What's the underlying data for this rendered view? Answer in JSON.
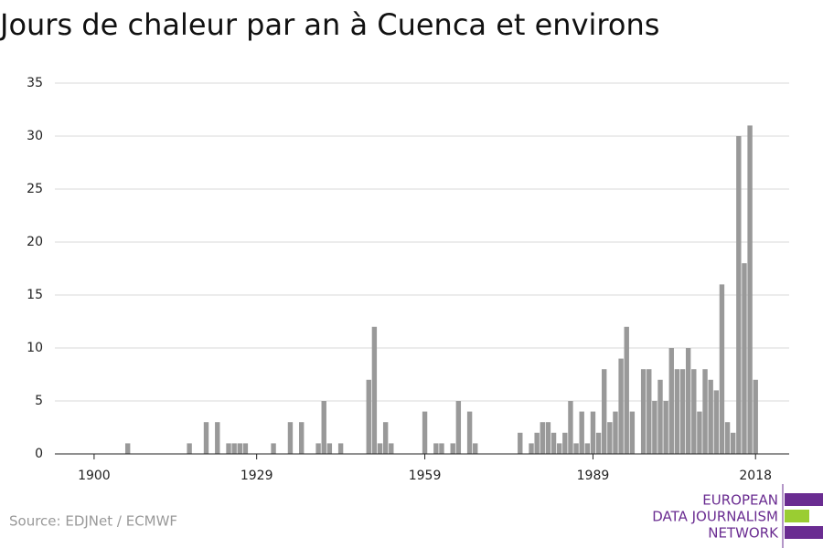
{
  "chart_data": {
    "type": "bar",
    "title": "Jours de chaleur par an à Cuenca et environs",
    "source": "Source: EDJNet / ECMWF",
    "logo": [
      "EUROPEAN",
      "DATA JOURNALISM",
      "NETWORK"
    ],
    "x": [
      1906,
      1917,
      1920,
      1922,
      1924,
      1925,
      1926,
      1927,
      1932,
      1935,
      1937,
      1940,
      1941,
      1942,
      1944,
      1949,
      1950,
      1951,
      1952,
      1953,
      1959,
      1961,
      1962,
      1964,
      1965,
      1967,
      1968,
      1976,
      1978,
      1979,
      1980,
      1981,
      1982,
      1983,
      1984,
      1985,
      1986,
      1987,
      1988,
      1989,
      1990,
      1991,
      1992,
      1993,
      1994,
      1995,
      1996,
      1998,
      1999,
      2000,
      2001,
      2002,
      2003,
      2004,
      2005,
      2006,
      2007,
      2008,
      2009,
      2010,
      2011,
      2012,
      2013,
      2014,
      2015,
      2016,
      2017,
      2018
    ],
    "values": [
      1,
      1,
      3,
      3,
      1,
      1,
      1,
      1,
      1,
      3,
      3,
      1,
      5,
      1,
      1,
      7,
      12,
      1,
      3,
      1,
      4,
      1,
      1,
      1,
      5,
      4,
      1,
      2,
      1,
      2,
      3,
      3,
      2,
      1,
      2,
      5,
      1,
      4,
      1,
      4,
      2,
      8,
      3,
      4,
      9,
      12,
      4,
      8,
      8,
      5,
      7,
      5,
      10,
      8,
      8,
      10,
      8,
      4,
      8,
      7,
      6,
      16,
      3,
      2,
      30,
      18,
      31,
      7
    ],
    "color": "#999999",
    "xlim": [
      1893,
      2024
    ],
    "xticks": [
      1900,
      1929,
      1959,
      1989,
      2018
    ],
    "ylim": [
      0,
      35
    ],
    "yticks": [
      0,
      5,
      10,
      15,
      20,
      25,
      30,
      35
    ],
    "grid": true
  }
}
